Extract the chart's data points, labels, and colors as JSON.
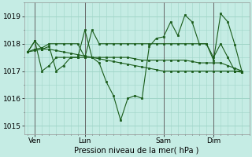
{
  "background_color": "#c5ece4",
  "grid_color": "#a0d5c8",
  "line_color": "#1a5c1a",
  "marker_color": "#1a5c1a",
  "xlabel": "Pression niveau de la mer( hPa )",
  "ylim": [
    1014.7,
    1019.5
  ],
  "yticks": [
    1015,
    1016,
    1017,
    1018,
    1019
  ],
  "xtick_labels": [
    "Ven",
    "Lun",
    "Sam",
    "Dim"
  ],
  "xtick_positions": [
    1,
    8,
    19,
    26
  ],
  "vline_positions": [
    1,
    8,
    19,
    26
  ],
  "xlim": [
    -0.5,
    31
  ],
  "series": [
    {
      "x": [
        0,
        1,
        2,
        3,
        4,
        5,
        6,
        7,
        8,
        9,
        10,
        11,
        12,
        13,
        14,
        15,
        16,
        17,
        18,
        19,
        20,
        21,
        22,
        23,
        24,
        25,
        26,
        27,
        28,
        29,
        30
      ],
      "y": [
        1017.7,
        1018.1,
        1017.8,
        1017.9,
        1017.0,
        1017.2,
        1017.5,
        1017.5,
        1018.5,
        1017.5,
        1017.3,
        1016.6,
        1016.1,
        1015.2,
        1016.0,
        1016.1,
        1016.0,
        1017.9,
        1018.2,
        1018.25,
        1018.8,
        1018.3,
        1019.05,
        1018.8,
        1018.0,
        1018.0,
        1017.4,
        1019.1,
        1018.8,
        1017.95,
        1016.95
      ]
    },
    {
      "x": [
        0,
        1,
        2,
        3,
        4,
        5,
        6,
        7,
        8,
        9,
        10,
        11,
        12,
        13,
        14,
        15,
        16,
        17,
        18,
        19,
        20,
        21,
        22,
        23,
        24,
        25,
        26,
        27,
        28,
        29,
        30
      ],
      "y": [
        1017.7,
        1017.8,
        1017.85,
        1018.0,
        1018.0,
        1018.0,
        1018.0,
        1018.0,
        1017.5,
        1017.5,
        1017.5,
        1017.5,
        1017.5,
        1017.5,
        1017.5,
        1017.45,
        1017.4,
        1017.4,
        1017.4,
        1017.4,
        1017.4,
        1017.4,
        1017.4,
        1017.35,
        1017.3,
        1017.3,
        1017.3,
        1017.3,
        1017.2,
        1017.1,
        1017.0
      ]
    },
    {
      "x": [
        0,
        1,
        2,
        3,
        4,
        5,
        6,
        7,
        8,
        9,
        10,
        11,
        12,
        13,
        14,
        15,
        16,
        17,
        18,
        19,
        20,
        21,
        22,
        23,
        24,
        25,
        26,
        27,
        28,
        29,
        30
      ],
      "y": [
        1017.7,
        1017.75,
        1017.8,
        1017.8,
        1017.75,
        1017.7,
        1017.65,
        1017.6,
        1017.55,
        1017.5,
        1017.45,
        1017.4,
        1017.35,
        1017.3,
        1017.25,
        1017.2,
        1017.15,
        1017.1,
        1017.05,
        1017.0,
        1017.0,
        1017.0,
        1017.0,
        1017.0,
        1017.0,
        1017.0,
        1017.0,
        1017.0,
        1017.0,
        1017.0,
        1017.0
      ]
    },
    {
      "x": [
        0,
        1,
        2,
        3,
        4,
        5,
        6,
        7,
        8,
        9,
        10,
        11,
        12,
        13,
        14,
        15,
        16,
        17,
        18,
        19,
        20,
        21,
        22,
        23,
        24,
        25,
        26,
        27,
        28,
        29,
        30
      ],
      "y": [
        1017.7,
        1018.1,
        1017.0,
        1017.2,
        1017.5,
        1017.5,
        1017.5,
        1017.5,
        1017.5,
        1018.5,
        1018.0,
        1018.0,
        1018.0,
        1018.0,
        1018.0,
        1018.0,
        1018.0,
        1018.0,
        1018.0,
        1018.0,
        1018.0,
        1018.0,
        1018.0,
        1018.0,
        1018.0,
        1018.0,
        1017.5,
        1018.0,
        1017.5,
        1017.0,
        1016.95
      ]
    }
  ]
}
